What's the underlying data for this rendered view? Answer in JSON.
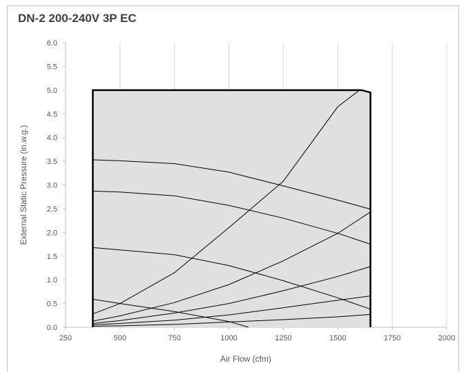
{
  "chart_data": {
    "type": "line",
    "title": "DN-2 200-240V 3P EC",
    "xlabel": "Air Flow (cfm)",
    "ylabel": "External Static Pressure (in.w.g.)",
    "xlim": [
      250,
      2000
    ],
    "ylim": [
      0,
      6.0
    ],
    "x_ticks": [
      "250",
      "500",
      "750",
      "1000",
      "1250",
      "1500",
      "1750",
      "2000"
    ],
    "y_ticks": [
      "0.0",
      "0.5",
      "1.0",
      "1.5",
      "2.0",
      "2.5",
      "3.0",
      "3.5",
      "4.0",
      "4.5",
      "5.0",
      "5.5",
      "6.0"
    ],
    "grid": "vertical",
    "operating_region": {
      "fill": "#e0e0e0",
      "points": [
        [
          375,
          0
        ],
        [
          375,
          5.0
        ],
        [
          1610,
          5.0
        ],
        [
          1650,
          4.95
        ],
        [
          1650,
          0
        ]
      ]
    },
    "fan_curves": [
      {
        "points": [
          [
            375,
            3.53
          ],
          [
            500,
            3.51
          ],
          [
            750,
            3.45
          ],
          [
            1000,
            3.27
          ],
          [
            1250,
            2.98
          ],
          [
            1500,
            2.68
          ],
          [
            1650,
            2.49
          ]
        ]
      },
      {
        "points": [
          [
            375,
            2.87
          ],
          [
            500,
            2.85
          ],
          [
            750,
            2.77
          ],
          [
            1000,
            2.57
          ],
          [
            1250,
            2.3
          ],
          [
            1500,
            1.98
          ],
          [
            1650,
            1.75
          ]
        ]
      },
      {
        "points": [
          [
            375,
            1.68
          ],
          [
            500,
            1.63
          ],
          [
            750,
            1.53
          ],
          [
            1000,
            1.3
          ],
          [
            1250,
            0.98
          ],
          [
            1500,
            0.62
          ],
          [
            1650,
            0.38
          ]
        ]
      },
      {
        "points": [
          [
            375,
            0.59
          ],
          [
            500,
            0.5
          ],
          [
            750,
            0.33
          ],
          [
            1000,
            0.12
          ],
          [
            1090,
            0.0
          ]
        ]
      }
    ],
    "system_curves": [
      {
        "points": [
          [
            375,
            0.28
          ],
          [
            500,
            0.5
          ],
          [
            750,
            1.15
          ],
          [
            1000,
            2.1
          ],
          [
            1250,
            3.08
          ],
          [
            1500,
            4.65
          ],
          [
            1600,
            5.0
          ]
        ]
      },
      {
        "points": [
          [
            375,
            0.13
          ],
          [
            500,
            0.24
          ],
          [
            750,
            0.52
          ],
          [
            1000,
            0.9
          ],
          [
            1250,
            1.4
          ],
          [
            1500,
            1.98
          ],
          [
            1650,
            2.43
          ]
        ]
      },
      {
        "points": [
          [
            375,
            0.08
          ],
          [
            500,
            0.14
          ],
          [
            750,
            0.3
          ],
          [
            1000,
            0.5
          ],
          [
            1250,
            0.77
          ],
          [
            1500,
            1.07
          ],
          [
            1650,
            1.28
          ]
        ]
      },
      {
        "points": [
          [
            375,
            0.05
          ],
          [
            500,
            0.08
          ],
          [
            750,
            0.15
          ],
          [
            1000,
            0.26
          ],
          [
            1250,
            0.41
          ],
          [
            1500,
            0.57
          ],
          [
            1650,
            0.66
          ]
        ]
      },
      {
        "points": [
          [
            375,
            0.02
          ],
          [
            500,
            0.03
          ],
          [
            750,
            0.06
          ],
          [
            1000,
            0.11
          ],
          [
            1250,
            0.16
          ],
          [
            1500,
            0.22
          ],
          [
            1650,
            0.27
          ]
        ]
      }
    ]
  }
}
